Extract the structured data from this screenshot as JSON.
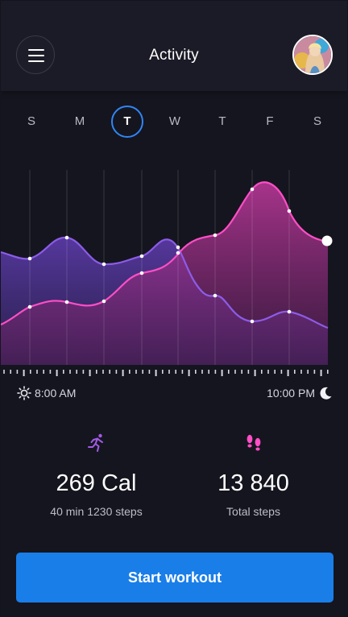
{
  "header": {
    "title": "Activity"
  },
  "days": [
    {
      "label": "S",
      "active": false
    },
    {
      "label": "M",
      "active": false
    },
    {
      "label": "T",
      "active": true
    },
    {
      "label": "W",
      "active": false
    },
    {
      "label": "T",
      "active": false
    },
    {
      "label": "F",
      "active": false
    },
    {
      "label": "S",
      "active": false
    }
  ],
  "timeline": {
    "start": "8:00 AM",
    "end": "10:00 PM",
    "start_icon": "sun-icon",
    "end_icon": "moon-icon"
  },
  "stats": [
    {
      "icon": "running-icon",
      "value": "269 Cal",
      "label": "40 min 1230 steps",
      "color": "#a25be6"
    },
    {
      "icon": "footprints-icon",
      "value": "13 840",
      "label": "Total steps",
      "color": "#ff4ec6"
    }
  ],
  "actions": {
    "start_workout": "Start workout"
  },
  "colors": {
    "accent_blue": "#1a7ee8",
    "series_purple": "#8c5ce8",
    "series_pink": "#ff4ec6",
    "background": "#15151f"
  }
}
